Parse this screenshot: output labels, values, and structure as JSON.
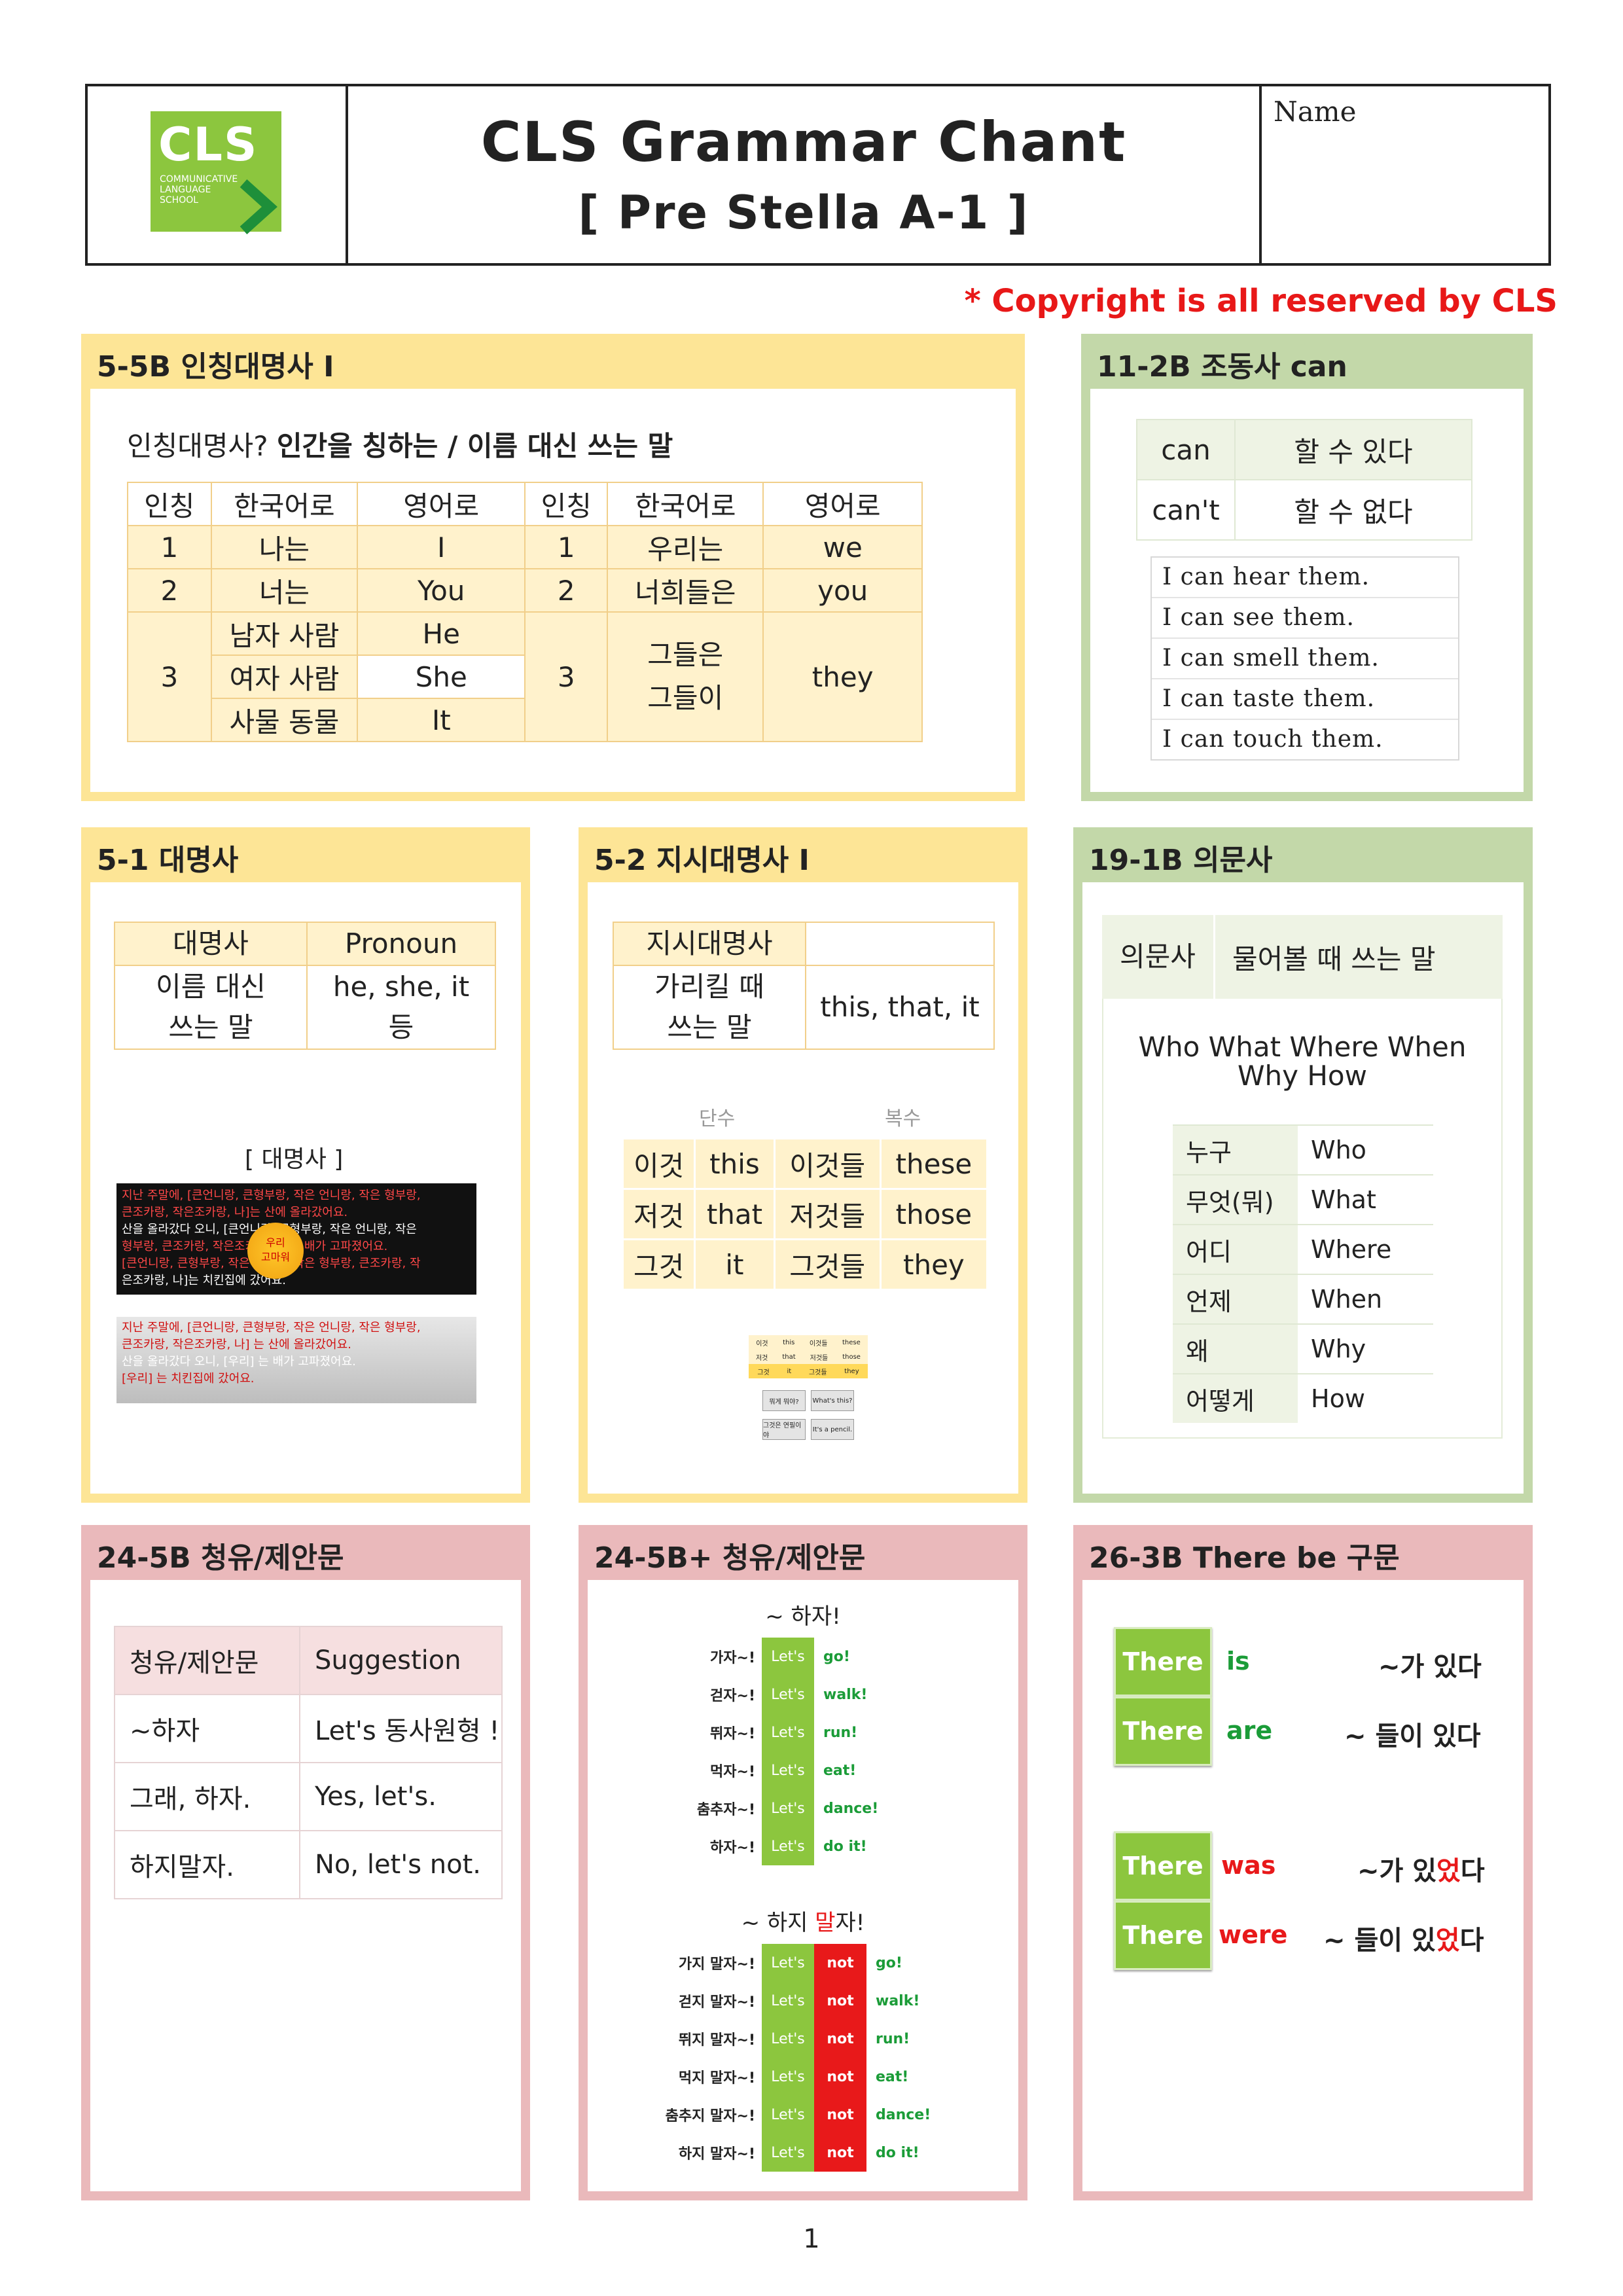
{
  "header": {
    "logo_text": "CLS",
    "logo_sub": [
      "COMMUNICATIVE",
      "LANGUAGE",
      "SCHOOL"
    ],
    "title": "CLS Grammar Chant",
    "subtitle": "[ Pre Stella A-1 ]",
    "name_label": "Name"
  },
  "copyright": "* Copyright is all reserved by CLS",
  "personal": {
    "heading": "5-5B 인칭대명사 Ⅰ",
    "intro_q": "인칭대명사?",
    "intro_a": "인간을 칭하는 / 이름 대신 쓰는 말",
    "headers": [
      "인칭",
      "한국어로",
      "영어로",
      "인칭",
      "한국어로",
      "영어로"
    ],
    "rows": [
      {
        "p": "1",
        "ko": "나는",
        "en": "I",
        "p2": "1",
        "ko2": "우리는",
        "en2": "we"
      },
      {
        "p": "2",
        "ko": "너는",
        "en": "You",
        "p2": "2",
        "ko2": "너희들은",
        "en2": "you"
      }
    ],
    "third": {
      "p": "3",
      "items": [
        {
          "ko": "남자 사람",
          "en": "He"
        },
        {
          "ko": "여자 사람",
          "en": "She"
        },
        {
          "ko": "사물 동물",
          "en": "It"
        }
      ],
      "p2": "3",
      "ko2": [
        "그들은",
        "그들이"
      ],
      "en2": "they"
    }
  },
  "can": {
    "heading": "11-2B 조동사 can",
    "rows": [
      {
        "en": "can",
        "ko": "할 수 있다"
      },
      {
        "en": "can't",
        "ko": "할 수 없다"
      }
    ],
    "sentences": [
      "I can hear them.",
      "I can see them.",
      "I can smell them.",
      "I can taste them.",
      "I can touch them."
    ]
  },
  "pronoun": {
    "heading": "5-1 대명사",
    "h1": "대명사",
    "h2": "Pronoun",
    "c1": [
      "이름 대신",
      "쓰는 말"
    ],
    "c2": [
      "he, she, it",
      "등"
    ],
    "caption": "[ 대명사 ]",
    "dark_lines": [
      "지난 주말에, [큰언니랑, 큰형부랑, 작은 언니랑, 작은 형부랑,",
      "큰조카랑, 작은조카랑, 나]는 산에 올라갔어요.",
      "산을 올라갔다 오니, [큰언니랑, 큰형부랑, 작은 언니랑, 작은",
      "형부랑, 큰조카랑, 작은조카랑, 나]는 배가 고파졌어요.",
      "[큰언니랑, 큰형부랑, 작은 언니랑, 작은 형부랑, 큰조카랑, 작",
      "은조카랑, 나]는 치킨집에 갔어요."
    ],
    "circle_text": [
      "우리",
      "고마워"
    ],
    "light_lines": [
      "지난 주말에, [큰언니랑, 큰형부랑, 작은 언니랑, 작은 형부랑,",
      "큰조카랑, 작은조카랑, 나] 는 산에 올라갔어요.",
      "산을 올라갔다 오니, [우리] 는 배가 고파졌어요.",
      "[우리] 는 치킨집에 갔어요."
    ]
  },
  "demonstrative": {
    "heading": "5-2 지시대명사 Ⅰ",
    "h1": "지시대명사",
    "h2": "",
    "c1": [
      "가리킬 때",
      "쓰는 말"
    ],
    "c2": "this, that, it",
    "singular": "단수",
    "plural": "복수",
    "rows": [
      [
        "이것",
        "this",
        "이것들",
        "these"
      ],
      [
        "저것",
        "that",
        "저것들",
        "those"
      ],
      [
        "그것",
        "it",
        "그것들",
        "they"
      ]
    ],
    "mini_rows": [
      [
        "이것",
        "this",
        "이것들",
        "these"
      ],
      [
        "저것",
        "that",
        "저것들",
        "those"
      ],
      [
        "그것",
        "it",
        "그것들",
        "they"
      ]
    ],
    "mini_cards": [
      [
        "뭐게 뭐야?",
        "What's this?"
      ],
      [
        "그것은 연필이야",
        "It's a pencil."
      ]
    ]
  },
  "question": {
    "heading": "19-1B 의문사",
    "h1": "의문사",
    "h2": "물어볼 때 쓰는 말",
    "line1": "Who What Where When",
    "line2": "Why How",
    "rows": [
      [
        "누구",
        "Who"
      ],
      [
        "무엇(뭐)",
        "What"
      ],
      [
        "어디",
        "Where"
      ],
      [
        "언제",
        "When"
      ],
      [
        "왜",
        "Why"
      ],
      [
        "어떻게",
        "How"
      ]
    ]
  },
  "suggest": {
    "heading": "24-5B 청유/제안문",
    "rows": [
      [
        "청유/제안문",
        "Suggestion"
      ],
      [
        "~하자",
        "Let's 동사원형 !"
      ],
      [
        "그래, 하자.",
        "Yes, let's."
      ],
      [
        "하지말자.",
        "No, let's not."
      ]
    ]
  },
  "suggest_plus": {
    "heading": "24-5B+ 청유/제안문",
    "title1": "~ 하자!",
    "lets": "Let's",
    "not": "not",
    "rows1": [
      [
        "가자~!",
        "go!"
      ],
      [
        "걷자~!",
        "walk!"
      ],
      [
        "뛰자~!",
        "run!"
      ],
      [
        "먹자~!",
        "eat!"
      ],
      [
        "춤추자~!",
        "dance!"
      ],
      [
        "하자~!",
        "do it!"
      ]
    ],
    "title2_a": "~ 하지 ",
    "title2_b": "말",
    "title2_c": "자!",
    "rows2": [
      [
        "가지 말자~!",
        "go!"
      ],
      [
        "걷지 말자~!",
        "walk!"
      ],
      [
        "뛰지 말자~!",
        "run!"
      ],
      [
        "먹지 말자~!",
        "eat!"
      ],
      [
        "춤추지 말자~!",
        "dance!"
      ],
      [
        "하지 말자~!",
        "do it!"
      ]
    ]
  },
  "there": {
    "heading": "26-3B There be 구문",
    "word": "There",
    "rows": [
      {
        "verb": "is",
        "mean_a": "~가 있다",
        "mean_r": "",
        "mean_b": ""
      },
      {
        "verb": "are",
        "mean_a": "~ 들이 있다",
        "mean_r": "",
        "mean_b": ""
      },
      {
        "verb": "was",
        "mean_a": "~가 있",
        "mean_r": "었",
        "mean_b": "다"
      },
      {
        "verb": "were",
        "mean_a": "~ 들이 있",
        "mean_r": "었",
        "mean_b": "다"
      }
    ],
    "colors": {
      "is": "#1b9c38",
      "past": "#e8191a"
    }
  },
  "page_number": "1"
}
